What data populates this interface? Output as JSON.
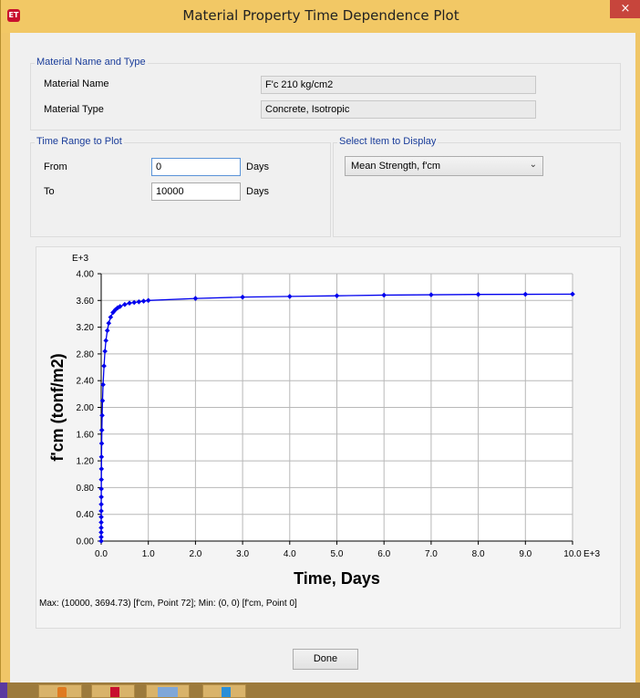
{
  "window": {
    "title": "Material Property Time Dependence Plot",
    "app_icon": "ET",
    "close_glyph": "×"
  },
  "material": {
    "group_title": "Material Name and Type",
    "name_label": "Material Name",
    "name_value": "F'c 210 kg/cm2",
    "type_label": "Material Type",
    "type_value": "Concrete, Isotropic"
  },
  "time_range": {
    "group_title": "Time Range to Plot",
    "from_label": "From",
    "from_value": "0",
    "from_unit": "Days",
    "to_label": "To",
    "to_value": "10000",
    "to_unit": "Days"
  },
  "display": {
    "group_title": "Select Item to Display",
    "selected": "Mean Strength, f'cm"
  },
  "status_line": "Max: (10000, 3694.73)  [f'cm, Point 72];  Min: (0, 0)  [f'cm, Point 0]",
  "done_label": "Done",
  "taskbar": {
    "icons": [
      "app-icon-orange",
      "app-icon-red",
      "app-icon-blue-window",
      "app-icon-blue"
    ]
  },
  "chart_data": {
    "type": "line",
    "title": "",
    "xlabel": "Time, Days",
    "ylabel": "f'cm (tonf/m2)",
    "x_scale_label": "E+3",
    "y_scale_label": "E+3",
    "xlim": [
      0,
      10
    ],
    "ylim": [
      0,
      4
    ],
    "x_ticks": [
      "0.0",
      "1.0",
      "2.0",
      "3.0",
      "4.0",
      "5.0",
      "6.0",
      "7.0",
      "8.0",
      "9.0",
      "10.0"
    ],
    "y_ticks": [
      "0.00",
      "0.40",
      "0.80",
      "1.20",
      "1.60",
      "2.00",
      "2.40",
      "2.80",
      "3.20",
      "3.60",
      "4.00"
    ],
    "grid": true,
    "line_color": "#0000ee",
    "series": [
      {
        "x": [
          0,
          0.0001,
          0.0002,
          0.0003,
          0.0005,
          0.0007,
          0.001,
          0.0014,
          0.002,
          0.0028,
          0.004,
          0.0055,
          0.007,
          0.01,
          0.014,
          0.02,
          0.028,
          0.04,
          0.06,
          0.08,
          0.1,
          0.13,
          0.16,
          0.2,
          0.25,
          0.3,
          0.35,
          0.4,
          0.5,
          0.6,
          0.7,
          0.8,
          0.9,
          1.0,
          2.0,
          3.0,
          4.0,
          5.0,
          6.0,
          7.0,
          8.0,
          9.0,
          10.0
        ],
        "y": [
          0.0,
          0.06,
          0.13,
          0.2,
          0.28,
          0.36,
          0.45,
          0.55,
          0.66,
          0.78,
          0.92,
          1.08,
          1.26,
          1.46,
          1.66,
          1.88,
          2.1,
          2.34,
          2.62,
          2.84,
          3.0,
          3.15,
          3.26,
          3.35,
          3.42,
          3.46,
          3.49,
          3.51,
          3.54,
          3.56,
          3.57,
          3.58,
          3.59,
          3.6,
          3.63,
          3.65,
          3.66,
          3.67,
          3.68,
          3.685,
          3.69,
          3.692,
          3.695
        ]
      }
    ]
  }
}
